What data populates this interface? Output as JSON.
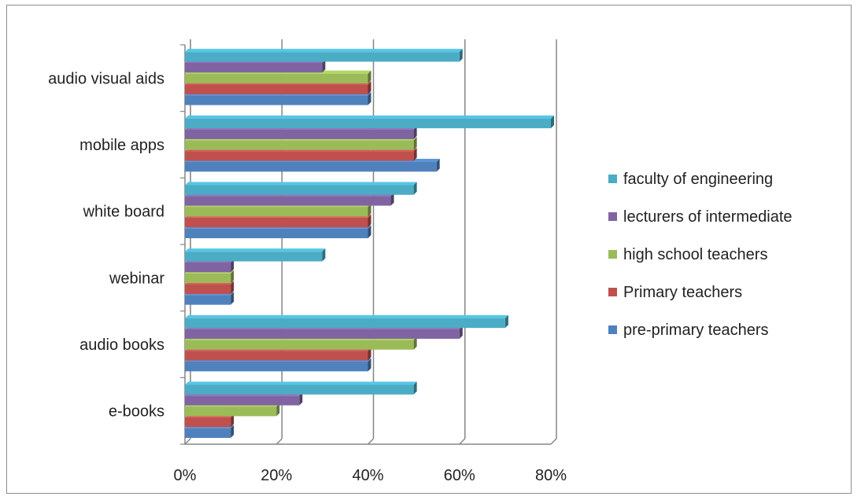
{
  "chart_data": {
    "type": "bar",
    "orientation": "horizontal",
    "categories": [
      "e-books",
      "audio books",
      "webinar",
      "white board",
      "mobile apps",
      "audio visual aids"
    ],
    "series": [
      {
        "name": "pre-primary teachers",
        "color": "#4f81bd",
        "values": [
          0.1,
          0.4,
          0.1,
          0.4,
          0.55,
          0.4
        ]
      },
      {
        "name": "Primary teachers",
        "color": "#c0504d",
        "values": [
          0.1,
          0.4,
          0.1,
          0.4,
          0.5,
          0.4
        ]
      },
      {
        "name": "high school teachers",
        "color": "#9bbb59",
        "values": [
          0.2,
          0.5,
          0.1,
          0.4,
          0.5,
          0.4
        ]
      },
      {
        "name": "lecturers of intermediate",
        "color": "#8064a2",
        "values": [
          0.25,
          0.6,
          0.1,
          0.45,
          0.5,
          0.3
        ]
      },
      {
        "name": "faculty of engineering",
        "color": "#4bacc6",
        "values": [
          0.5,
          0.7,
          0.3,
          0.5,
          0.8,
          0.6
        ]
      }
    ],
    "x_ticks": [
      "0%",
      "20%",
      "40%",
      "60%",
      "80%"
    ],
    "xlim": [
      0,
      0.8
    ],
    "legend_position": "right",
    "legend_order": [
      "faculty of engineering",
      "lecturers of intermediate",
      "high school teachers",
      "Primary teachers",
      "pre-primary teachers"
    ],
    "grid": true,
    "style": "3d-clustered-bar"
  }
}
